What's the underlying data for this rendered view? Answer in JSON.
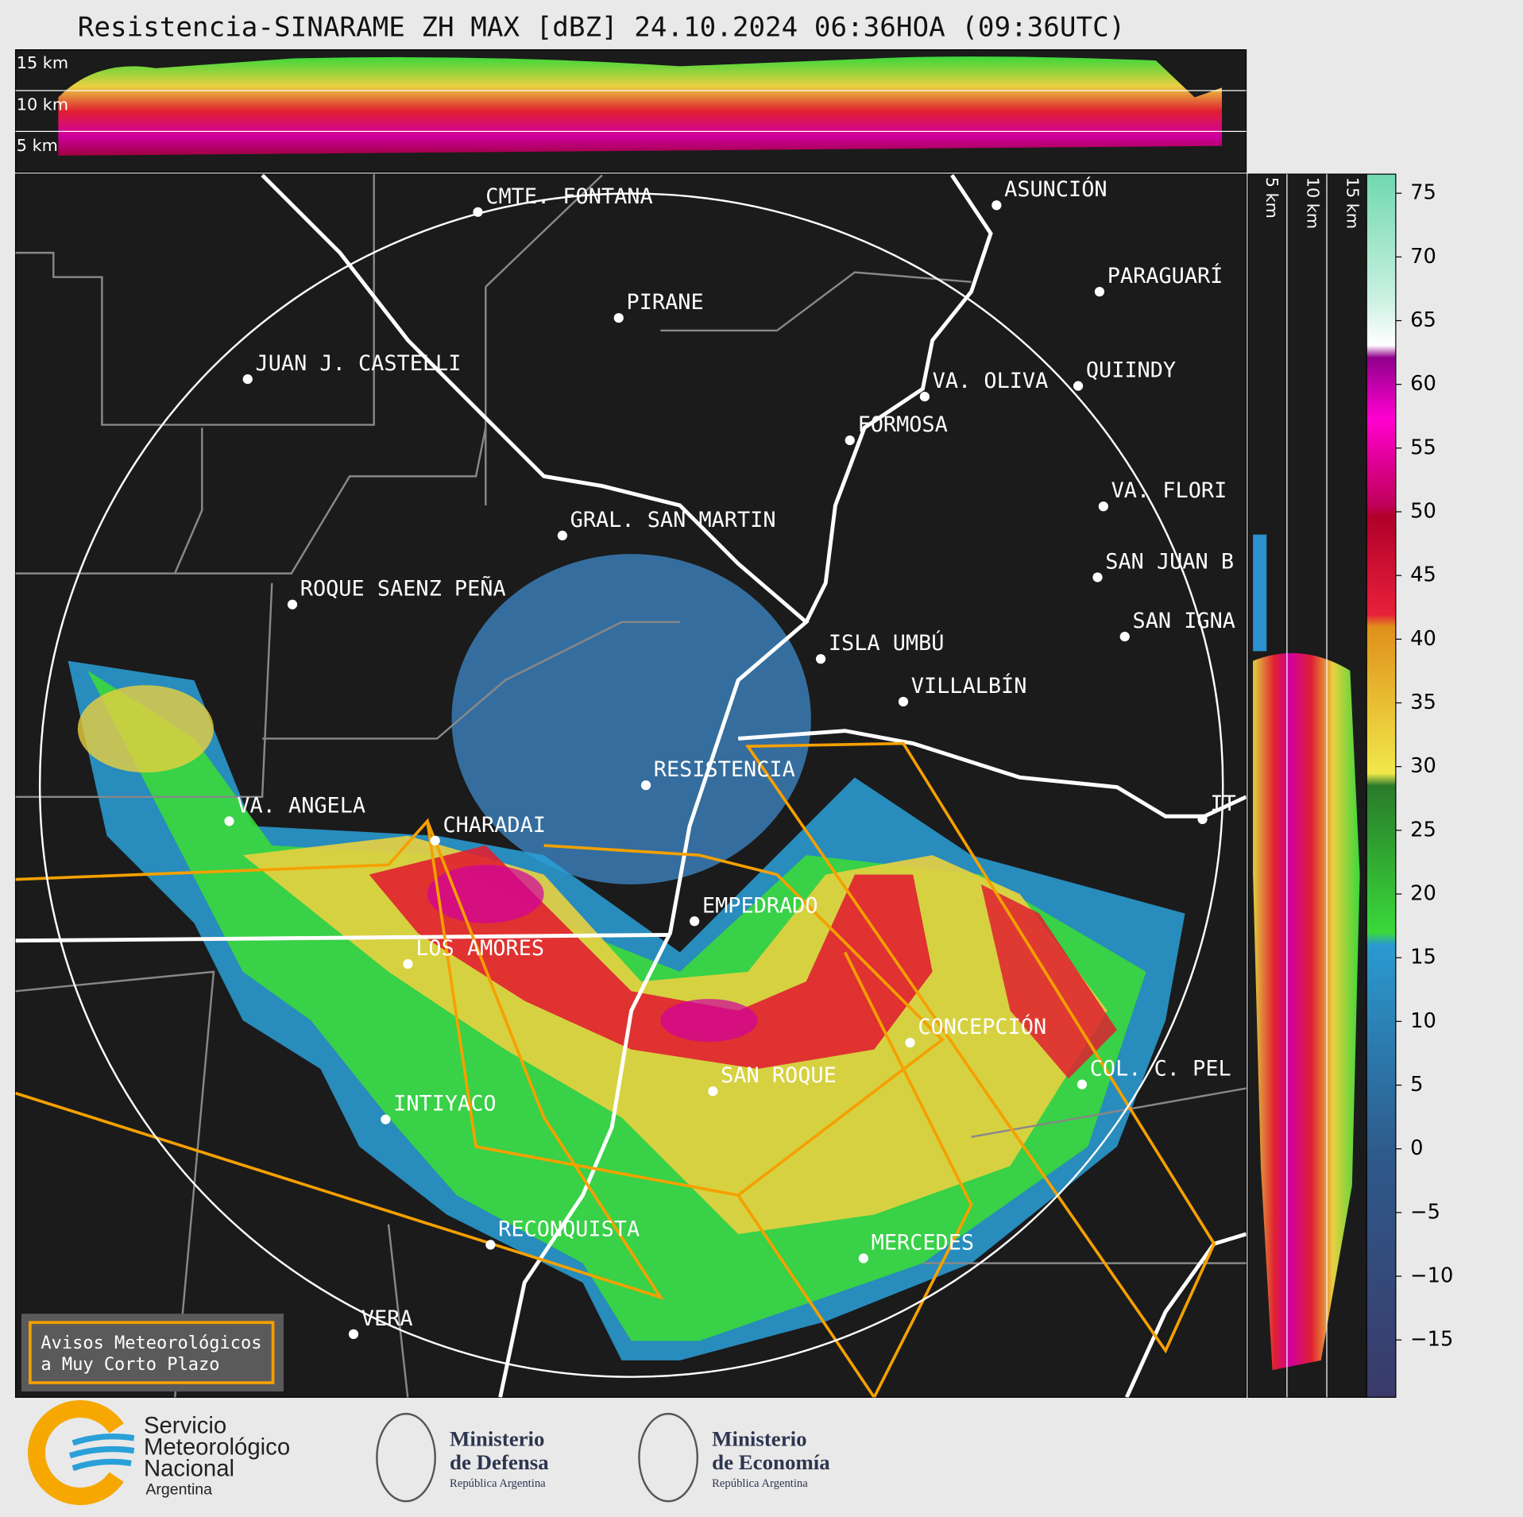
{
  "header": {
    "title": "Resistencia-SINARAME ZH MAX [dBZ] 24.10.2024 06:36HOA (09:36UTC)"
  },
  "cross_section": {
    "height_labels": [
      "15 km",
      "10 km",
      "5 km"
    ]
  },
  "map": {
    "places": [
      "CMTE. FONTANA",
      "PIRANE",
      "JUAN J. CASTELLI",
      "ASUNCIÓN",
      "PARAGUARÍ",
      "VA. OLIVA",
      "QUIINDY",
      "FORMOSA",
      "VA. FLORI",
      "GRAL. SAN MARTIN",
      "SAN JUAN B",
      "ROQUE SAENZ PEÑA",
      "SAN IGNA",
      "ISLA UMBÚ",
      "VILLALBÍN",
      "RESISTENCIA",
      "VA. ANGELA",
      "CHARADAI",
      "IT",
      "EMPEDRADO",
      "LOS AMORES",
      "CONCEPCIÓN",
      "COL. C. PEL",
      "SAN ROQUE",
      "INTIYACO",
      "RECONQUISTA",
      "MERCEDES",
      "VERA"
    ]
  },
  "colorbar": {
    "lim": [
      -19.5,
      76.5
    ],
    "ticks": [
      75,
      70,
      65,
      60,
      55,
      50,
      45,
      40,
      35,
      30,
      25,
      20,
      15,
      10,
      5,
      0,
      {
        "value": -5,
        "label": "−5"
      },
      {
        "value": -10,
        "label": "−10"
      },
      {
        "value": -15,
        "label": "−15"
      }
    ]
  },
  "legend": {
    "lines": [
      "Avisos Meteorológicos",
      "a Muy Corto Plazo"
    ]
  },
  "logos": {
    "smn": [
      "Servicio",
      "Meteorológico",
      "Nacional",
      "Argentina"
    ],
    "defensa": [
      "Ministerio",
      "de Defensa",
      "República Argentina"
    ],
    "economia": [
      "Ministerio",
      "de Economía",
      "República Argentina"
    ]
  }
}
